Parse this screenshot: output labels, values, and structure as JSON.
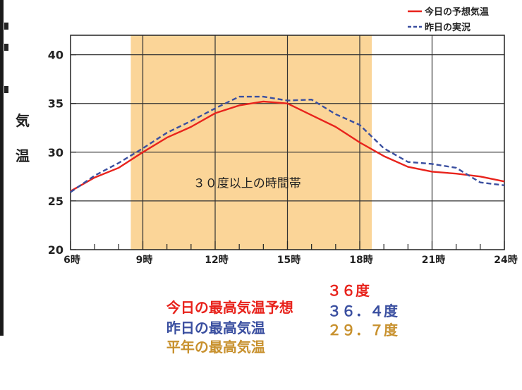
{
  "chart_data": {
    "type": "line",
    "x": [
      6,
      7,
      8,
      9,
      10,
      11,
      12,
      13,
      14,
      15,
      16,
      17,
      18,
      19,
      20,
      21,
      22,
      23,
      24
    ],
    "xlim": [
      6,
      24
    ],
    "ylim": [
      20,
      42
    ],
    "xticks": [
      6,
      9,
      12,
      15,
      18,
      21,
      24
    ],
    "x_tick_labels": [
      "6時",
      "9時",
      "12時",
      "15時",
      "18時",
      "21時",
      "24時"
    ],
    "yticks": [
      20,
      25,
      30,
      35,
      40
    ],
    "y_tick_labels": [
      "20",
      "25",
      "30",
      "35",
      "40"
    ],
    "ylabel": "気温",
    "grid": true,
    "legend_position": "top-right",
    "series": [
      {
        "name": "今日の予想気温",
        "color": "#e8231c",
        "style": "solid",
        "values": [
          26.0,
          27.4,
          28.4,
          30.0,
          31.5,
          32.6,
          34.0,
          34.8,
          35.2,
          35.0,
          33.8,
          32.6,
          31.0,
          29.6,
          28.5,
          28.0,
          27.8,
          27.5,
          27.0
        ]
      },
      {
        "name": "昨日の実況",
        "color": "#3a4fa0",
        "style": "dashed",
        "values": [
          25.9,
          27.6,
          28.9,
          30.4,
          32.0,
          33.2,
          34.5,
          35.7,
          35.7,
          35.3,
          35.4,
          33.9,
          32.8,
          30.4,
          29.0,
          28.8,
          28.4,
          26.9,
          26.6
        ]
      }
    ],
    "highlight_band": {
      "from": 8.5,
      "to": 18.5,
      "label": "３０度以上の時間帯",
      "color": "#fbd598"
    }
  },
  "summary": [
    {
      "label": "今日の最高気温予想",
      "value": "３６度",
      "color": "#e8231c"
    },
    {
      "label": "昨日の最高気温",
      "value": "３６．４度",
      "color": "#3a4fa0"
    },
    {
      "label": "平年の最高気温",
      "value": "２９．７度",
      "color": "#c8912e"
    }
  ]
}
